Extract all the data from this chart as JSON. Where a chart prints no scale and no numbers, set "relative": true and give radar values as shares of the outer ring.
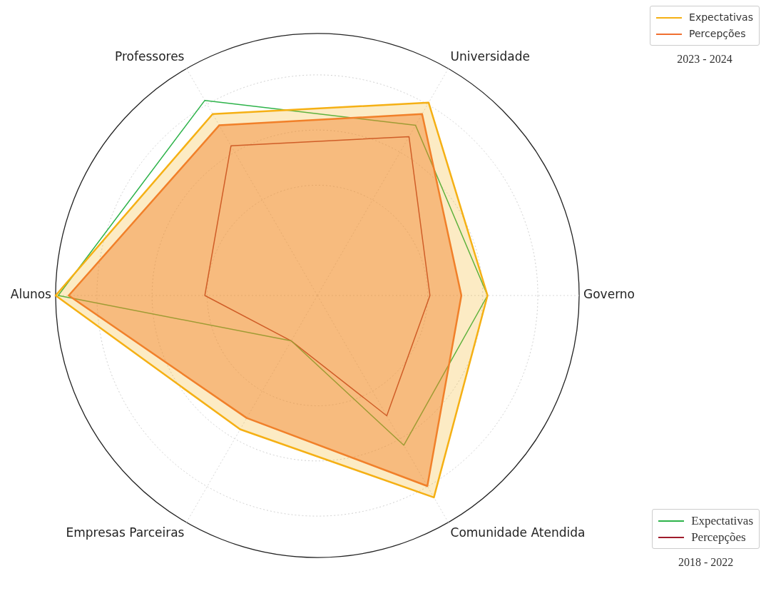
{
  "chart_data": {
    "type": "radar",
    "relative": true,
    "legend": "right",
    "grid": true,
    "categories": [
      "Universidade",
      "Governo",
      "Comunidade Atendida",
      "Empresas Parceiras",
      "Alunos",
      "Professores"
    ],
    "series": [
      {
        "name": "Expectativas",
        "color": "#f5b014",
        "values": [
          0.85,
          0.65,
          0.89,
          0.59,
          1.0,
          0.8
        ]
      },
      {
        "name": "Percepções",
        "color": "#f07030",
        "values": [
          0.8,
          0.55,
          0.84,
          0.54,
          0.95,
          0.75
        ]
      },
      {
        "name": "Expectativas",
        "color": "#2db34a",
        "values": [
          0.75,
          0.65,
          0.66,
          0.2,
          0.99,
          0.86
        ]
      },
      {
        "name": "Percepções",
        "color": "#a01c2c",
        "values": [
          0.7,
          0.43,
          0.53,
          0.2,
          0.43,
          0.66
        ]
      }
    ],
    "annotations": [
      "2023 - 2024",
      "2018 - 2022"
    ]
  }
}
